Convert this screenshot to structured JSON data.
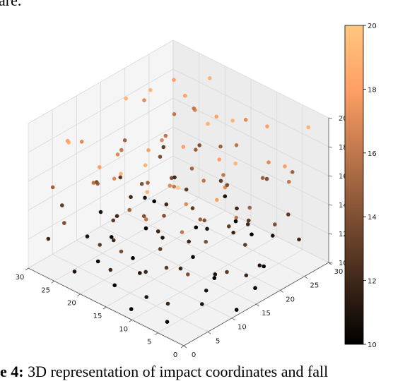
{
  "caption_top": "are.",
  "caption_bottom": {
    "label": "e 4:",
    "text": "3D representation of impact coordinates and fall"
  },
  "chart_data": {
    "type": "scatter",
    "projection": "3d",
    "xlim": [
      0,
      30
    ],
    "ylim": [
      0,
      30
    ],
    "zlim": [
      10,
      20
    ],
    "x_ticks": [
      "0",
      "5",
      "10",
      "15",
      "20",
      "25",
      "30"
    ],
    "y_ticks": [
      "0",
      "5",
      "10",
      "15",
      "20",
      "25",
      "30"
    ],
    "z_ticks": [
      "10",
      "12",
      "14",
      "16",
      "18",
      "20"
    ],
    "colorbar": {
      "range": [
        10,
        20
      ],
      "ticks": [
        "10",
        "12",
        "14",
        "16",
        "18",
        "20"
      ],
      "colormap": "copper"
    },
    "grid": true,
    "points": [
      [
        3,
        2,
        20
      ],
      [
        8,
        1,
        19
      ],
      [
        14,
        2,
        19
      ],
      [
        20,
        4,
        18
      ],
      [
        25,
        3,
        19
      ],
      [
        28,
        6,
        18
      ],
      [
        2,
        9,
        18
      ],
      [
        7,
        8,
        17
      ],
      [
        12,
        10,
        17
      ],
      [
        18,
        12,
        18
      ],
      [
        23,
        11,
        17
      ],
      [
        29,
        10,
        17
      ],
      [
        4,
        15,
        19
      ],
      [
        9,
        17,
        18
      ],
      [
        15,
        16,
        18
      ],
      [
        21,
        18,
        17
      ],
      [
        27,
        17,
        19
      ],
      [
        1,
        22,
        18
      ],
      [
        6,
        24,
        17
      ],
      [
        12,
        23,
        19
      ],
      [
        17,
        25,
        18
      ],
      [
        24,
        26,
        18
      ],
      [
        30,
        24,
        17
      ],
      [
        3,
        29,
        19
      ],
      [
        10,
        28,
        18
      ],
      [
        16,
        30,
        17
      ],
      [
        22,
        29,
        19
      ],
      [
        28,
        28,
        18
      ],
      [
        13,
        6,
        19
      ],
      [
        26,
        21,
        19
      ],
      [
        5,
        5,
        16
      ],
      [
        11,
        4,
        16
      ],
      [
        17,
        7,
        15
      ],
      [
        23,
        6,
        16
      ],
      [
        29,
        4,
        15
      ],
      [
        2,
        13,
        16
      ],
      [
        8,
        12,
        15
      ],
      [
        14,
        13,
        16
      ],
      [
        20,
        14,
        15
      ],
      [
        26,
        15,
        16
      ],
      [
        5,
        19,
        15
      ],
      [
        11,
        20,
        16
      ],
      [
        18,
        21,
        15
      ],
      [
        24,
        22,
        16
      ],
      [
        30,
        20,
        15
      ],
      [
        3,
        25,
        16
      ],
      [
        9,
        26,
        15
      ],
      [
        15,
        27,
        16
      ],
      [
        21,
        25,
        15
      ],
      [
        27,
        27,
        16
      ],
      [
        7,
        30,
        15
      ],
      [
        19,
        28,
        15
      ],
      [
        12,
        17,
        16
      ],
      [
        25,
        9,
        15
      ],
      [
        2,
        3,
        14
      ],
      [
        8,
        5,
        13
      ],
      [
        13,
        1,
        14
      ],
      [
        19,
        3,
        13
      ],
      [
        24,
        1,
        14
      ],
      [
        30,
        7,
        13
      ],
      [
        1,
        10,
        13
      ],
      [
        6,
        11,
        14
      ],
      [
        12,
        8,
        13
      ],
      [
        17,
        10,
        14
      ],
      [
        22,
        9,
        13
      ],
      [
        28,
        12,
        14
      ],
      [
        4,
        17,
        13
      ],
      [
        10,
        15,
        14
      ],
      [
        16,
        19,
        13
      ],
      [
        23,
        16,
        14
      ],
      [
        29,
        18,
        13
      ],
      [
        2,
        21,
        14
      ],
      [
        8,
        22,
        13
      ],
      [
        14,
        24,
        14
      ],
      [
        20,
        22,
        13
      ],
      [
        26,
        23,
        14
      ],
      [
        5,
        27,
        13
      ],
      [
        11,
        29,
        14
      ],
      [
        18,
        27,
        13
      ],
      [
        24,
        29,
        14
      ],
      [
        30,
        28,
        13
      ],
      [
        15,
        12,
        14
      ],
      [
        21,
        20,
        14
      ],
      [
        9,
        19,
        13
      ],
      [
        4,
        1,
        12
      ],
      [
        10,
        3,
        11
      ],
      [
        16,
        2,
        12
      ],
      [
        22,
        1,
        11
      ],
      [
        28,
        2,
        12
      ],
      [
        3,
        7,
        11
      ],
      [
        9,
        9,
        12
      ],
      [
        15,
        7,
        11
      ],
      [
        21,
        8,
        12
      ],
      [
        27,
        9,
        11
      ],
      [
        1,
        14,
        12
      ],
      [
        7,
        14,
        11
      ],
      [
        13,
        15,
        12
      ],
      [
        19,
        16,
        11
      ],
      [
        25,
        13,
        12
      ],
      [
        30,
        15,
        11
      ],
      [
        4,
        20,
        11
      ],
      [
        10,
        21,
        12
      ],
      [
        16,
        22,
        11
      ],
      [
        22,
        20,
        12
      ],
      [
        28,
        22,
        11
      ],
      [
        2,
        26,
        12
      ],
      [
        8,
        27,
        11
      ],
      [
        14,
        26,
        12
      ],
      [
        20,
        30,
        11
      ],
      [
        26,
        26,
        12
      ],
      [
        5,
        10,
        11
      ],
      [
        12,
        5,
        12
      ],
      [
        27,
        18,
        12
      ],
      [
        18,
        14,
        12
      ],
      [
        6,
        3,
        10
      ],
      [
        12,
        2,
        10
      ],
      [
        18,
        5,
        10
      ],
      [
        24,
        8,
        10
      ],
      [
        1,
        12,
        10
      ],
      [
        9,
        16,
        10
      ],
      [
        15,
        18,
        10
      ],
      [
        21,
        12,
        10
      ],
      [
        27,
        14,
        10
      ],
      [
        6,
        23,
        10
      ],
      [
        13,
        28,
        10
      ],
      [
        20,
        24,
        10
      ],
      [
        25,
        19,
        10
      ],
      [
        29,
        25,
        10
      ],
      [
        3,
        18,
        10
      ],
      [
        17,
        29,
        10
      ],
      [
        10,
        24,
        12
      ],
      [
        23,
        27,
        17
      ],
      [
        6,
        15,
        17
      ],
      [
        19,
        6,
        17
      ],
      [
        14,
        20,
        19
      ],
      [
        26,
        30,
        16
      ]
    ]
  }
}
